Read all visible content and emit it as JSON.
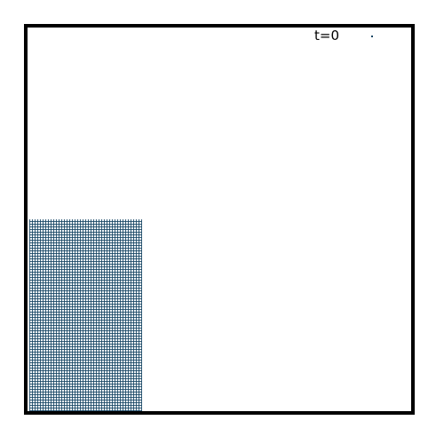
{
  "simulation": {
    "time_label": "t=0",
    "particle_color": "#174664",
    "frame_color": "#000000",
    "background_color": "#ffffff"
  }
}
